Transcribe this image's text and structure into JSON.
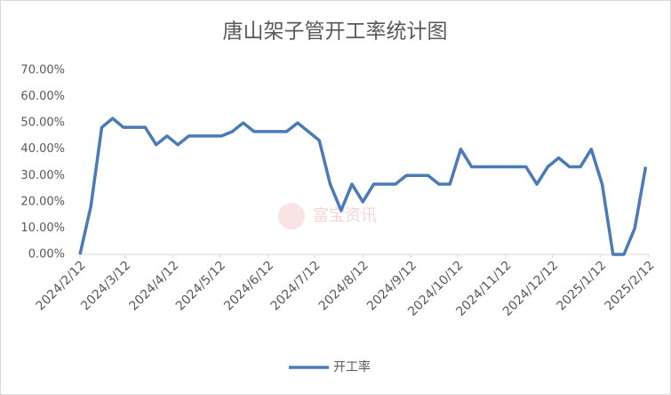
{
  "chart_data": {
    "type": "line",
    "title": "唐山架子管开工率统计图",
    "watermark": "富宝资讯",
    "x": [
      "2024/2/12",
      "2024/2/19",
      "2024/2/26",
      "2024/3/4",
      "2024/3/11",
      "2024/3/18",
      "2024/3/25",
      "2024/4/1",
      "2024/4/8",
      "2024/4/15",
      "2024/4/22",
      "2024/4/29",
      "2024/5/6",
      "2024/5/13",
      "2024/5/20",
      "2024/5/27",
      "2024/6/3",
      "2024/6/10",
      "2024/6/17",
      "2024/6/24",
      "2024/7/1",
      "2024/7/8",
      "2024/7/15",
      "2024/7/22",
      "2024/7/29",
      "2024/8/5",
      "2024/8/12",
      "2024/8/19",
      "2024/8/26",
      "2024/9/2",
      "2024/9/9",
      "2024/9/16",
      "2024/9/23",
      "2024/9/30",
      "2024/10/7",
      "2024/10/14",
      "2024/10/21",
      "2024/10/28",
      "2024/11/4",
      "2024/11/11",
      "2024/11/18",
      "2024/11/25",
      "2024/12/2",
      "2024/12/9",
      "2024/12/16",
      "2024/12/23",
      "2024/12/30",
      "2025/1/6",
      "2025/1/13",
      "2025/1/20",
      "2025/1/27",
      "2025/2/3",
      "2025/2/10"
    ],
    "series": [
      {
        "name": "开工率",
        "color": "#4a7ab8",
        "values": [
          0,
          18.3,
          48.3,
          51.7,
          48.3,
          48.3,
          48.3,
          41.7,
          45,
          41.7,
          45,
          45,
          45,
          45,
          46.7,
          50,
          46.7,
          46.7,
          46.7,
          46.7,
          50,
          46.7,
          43.3,
          26.7,
          16.7,
          26.7,
          20,
          26.7,
          26.7,
          26.7,
          30,
          30,
          30,
          26.7,
          26.7,
          40,
          33.3,
          33.3,
          33.3,
          33.3,
          33.3,
          33.3,
          26.7,
          33.3,
          36.7,
          33.3,
          33.3,
          40,
          26.7,
          0,
          0,
          10,
          33.3
        ]
      }
    ],
    "xlim": [
      "2024/2/12",
      "2025/2/12"
    ],
    "xticks": [
      "2024/2/12",
      "2024/3/12",
      "2024/4/12",
      "2024/5/12",
      "2024/6/12",
      "2024/7/12",
      "2024/8/12",
      "2024/9/12",
      "2024/10/12",
      "2024/11/12",
      "2024/12/12",
      "2025/1/12",
      "2025/2/12"
    ],
    "ylim": [
      0,
      70
    ],
    "yticks": [
      {
        "value": 0,
        "label": "0.00%"
      },
      {
        "value": 10,
        "label": "10.00%"
      },
      {
        "value": 20,
        "label": "20.00%"
      },
      {
        "value": 30,
        "label": "30.00%"
      },
      {
        "value": 40,
        "label": "40.00%"
      },
      {
        "value": 50,
        "label": "50.00%"
      },
      {
        "value": 60,
        "label": "60.00%"
      },
      {
        "value": 70,
        "label": "70.00%"
      }
    ],
    "grid": false,
    "legend": "bottom"
  }
}
